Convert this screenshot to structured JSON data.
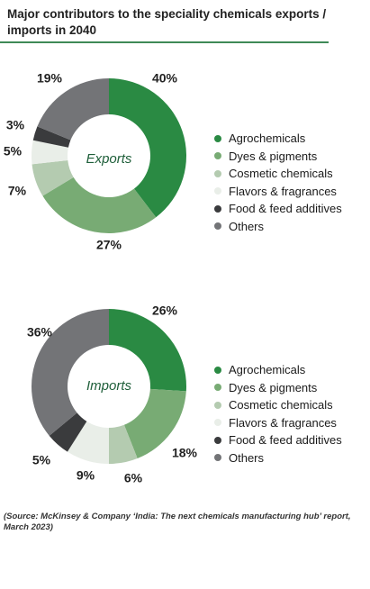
{
  "title": "Major contributors to the speciality chemicals exports / imports in 2040",
  "source": "(Source: McKinsey & Company ‘India: The next chemicals manufacturing hub’ report, March 2023)",
  "colors": {
    "Agrochemicals": "#2a8a43",
    "Dyes & pigments": "#78ab74",
    "Cosmetic chemicals": "#b4cbb0",
    "Flavors & fragrances": "#e9eee8",
    "Food & feed additives": "#3a3b3d",
    "Others": "#737477",
    "rule": "#3f8a57"
  },
  "chart_data": [
    {
      "type": "pie",
      "title": "Exports",
      "categories": [
        "Agrochemicals",
        "Dyes & pigments",
        "Cosmetic chemicals",
        "Flavors & fragrances",
        "Food & feed additives",
        "Others"
      ],
      "values": [
        40,
        27,
        7,
        5,
        3,
        19
      ],
      "labels": [
        "40%",
        "27%",
        "7%",
        "5%",
        "3%",
        "19%"
      ]
    },
    {
      "type": "pie",
      "title": "Imports",
      "categories": [
        "Agrochemicals",
        "Dyes & pigments",
        "Cosmetic chemicals",
        "Flavors & fragrances",
        "Food & feed additives",
        "Others"
      ],
      "values": [
        26,
        18,
        6,
        9,
        5,
        36
      ],
      "labels": [
        "26%",
        "18%",
        "6%",
        "9%",
        "5%",
        "36%"
      ]
    }
  ]
}
